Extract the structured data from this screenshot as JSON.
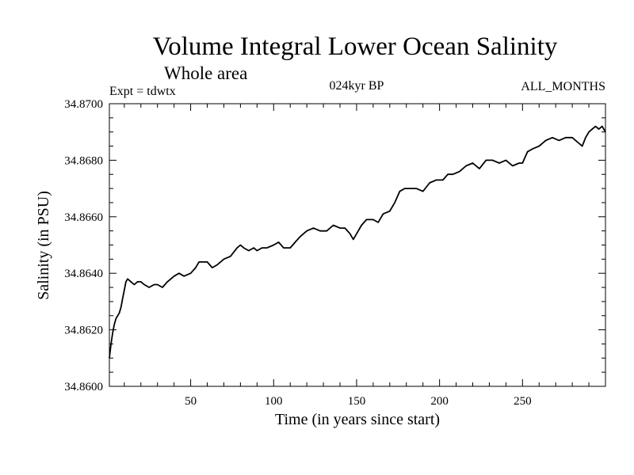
{
  "chart_data": {
    "type": "line",
    "title": "Volume Integral Lower Ocean Salinity",
    "subtitle": "Whole area",
    "experiment": "Expt = tdwtx",
    "period": "024kyr BP",
    "months": "ALL_MONTHS",
    "xlabel": "Time (in years since start)",
    "ylabel": "Salinity (in PSU)",
    "xlim": [
      1,
      300
    ],
    "ylim": [
      34.86,
      34.87
    ],
    "xticks": [
      50,
      100,
      150,
      200,
      250
    ],
    "xtick_labels": [
      "50",
      "100",
      "150",
      "200",
      "250"
    ],
    "yticks": [
      34.86,
      34.862,
      34.864,
      34.866,
      34.868,
      34.87
    ],
    "ytick_labels": [
      "34.8600",
      "34.8620",
      "34.8640",
      "34.8660",
      "34.8680",
      "34.8700"
    ],
    "grid": false,
    "series": [
      {
        "name": "Salinity",
        "color": "#000000",
        "x": [
          1,
          2,
          3,
          4,
          5,
          6,
          7,
          8,
          9,
          10,
          11,
          12,
          14,
          16,
          18,
          20,
          22,
          25,
          28,
          30,
          33,
          36,
          40,
          43,
          46,
          50,
          53,
          55,
          58,
          60,
          63,
          66,
          70,
          74,
          78,
          80,
          82,
          85,
          88,
          90,
          93,
          96,
          100,
          103,
          106,
          110,
          113,
          116,
          120,
          124,
          128,
          132,
          136,
          140,
          143,
          146,
          148,
          150,
          153,
          156,
          160,
          163,
          166,
          170,
          173,
          176,
          179,
          182,
          186,
          190,
          194,
          198,
          202,
          205,
          208,
          212,
          216,
          220,
          224,
          228,
          232,
          236,
          240,
          244,
          248,
          250,
          253,
          256,
          260,
          264,
          268,
          272,
          276,
          280,
          284,
          286,
          288,
          290,
          292,
          294,
          296,
          298,
          300
        ],
        "values": [
          34.861,
          34.8615,
          34.8619,
          34.8622,
          34.8624,
          34.8625,
          34.8626,
          34.8628,
          34.8631,
          34.8634,
          34.8637,
          34.8638,
          34.8637,
          34.8636,
          34.8637,
          34.8637,
          34.8636,
          34.8635,
          34.8636,
          34.8636,
          34.8635,
          34.8637,
          34.8639,
          34.864,
          34.8639,
          34.864,
          34.8642,
          34.8644,
          34.8644,
          34.8644,
          34.8642,
          34.8643,
          34.8645,
          34.8646,
          34.8649,
          34.865,
          34.8649,
          34.8648,
          34.8649,
          34.8648,
          34.8649,
          34.8649,
          34.865,
          34.8651,
          34.8649,
          34.8649,
          34.8651,
          34.8653,
          34.8655,
          34.8656,
          34.8655,
          34.8655,
          34.8657,
          34.8656,
          34.8656,
          34.8654,
          34.8652,
          34.8654,
          34.8657,
          34.8659,
          34.8659,
          34.8658,
          34.8661,
          34.8662,
          34.8665,
          34.8669,
          34.867,
          34.867,
          34.867,
          34.8669,
          34.8672,
          34.8673,
          34.8673,
          34.8675,
          34.8675,
          34.8676,
          34.8678,
          34.8679,
          34.8677,
          34.868,
          34.868,
          34.8679,
          34.868,
          34.8678,
          34.8679,
          34.8679,
          34.8683,
          34.8684,
          34.8685,
          34.8687,
          34.8688,
          34.8687,
          34.8688,
          34.8688,
          34.8686,
          34.8685,
          34.8688,
          34.869,
          34.8691,
          34.8692,
          34.8691,
          34.8692,
          34.869
        ]
      }
    ]
  }
}
